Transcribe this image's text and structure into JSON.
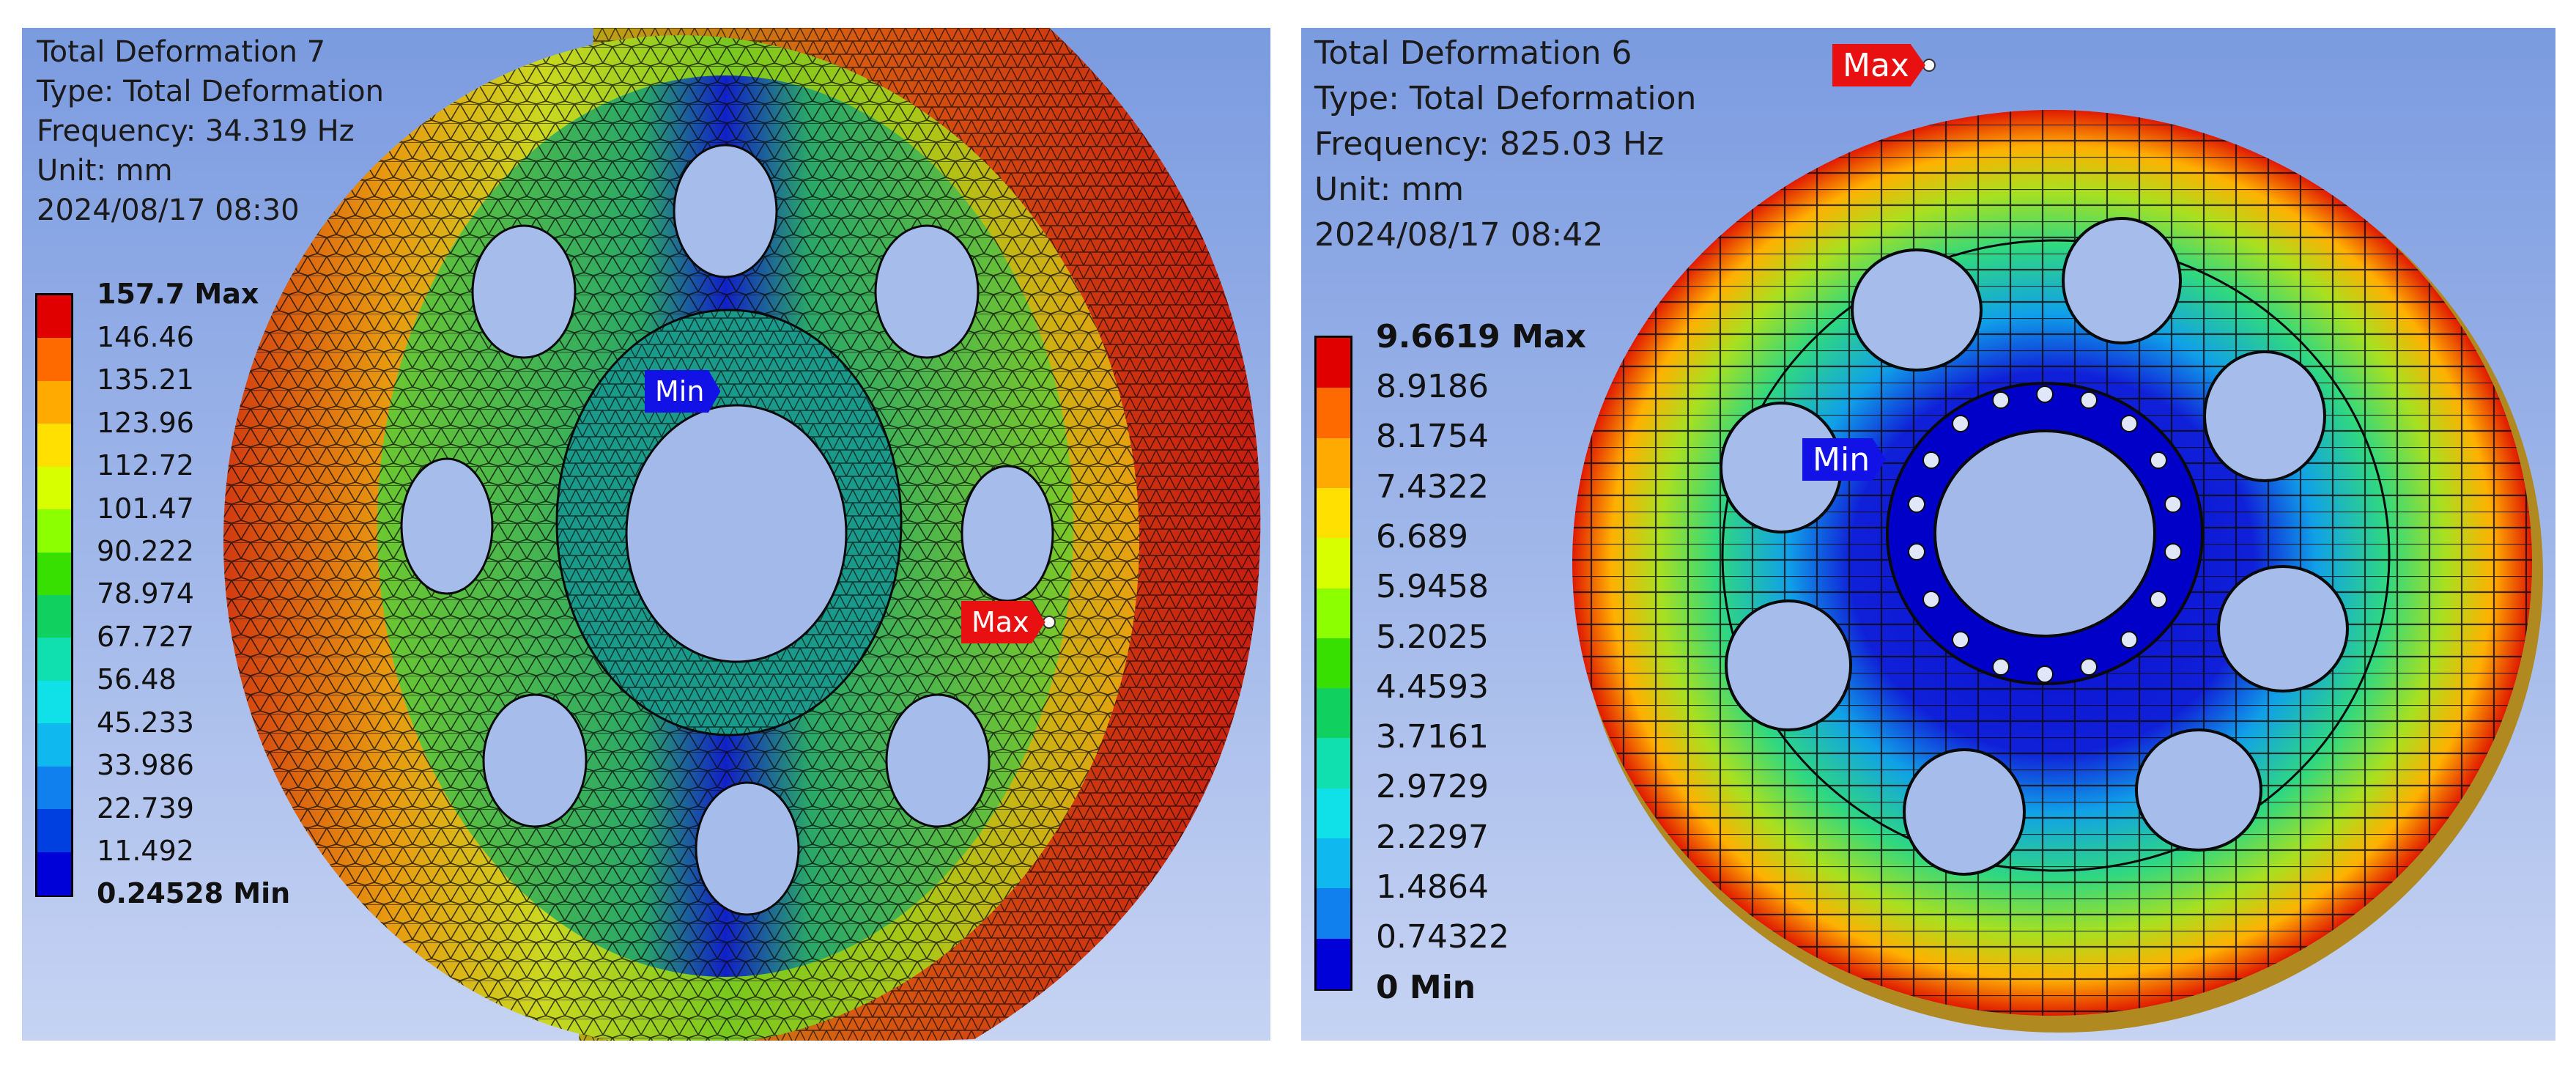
{
  "left": {
    "title": "Total Deformation 7",
    "type": "Type: Total Deformation",
    "frequency": "Frequency: 34.319 Hz",
    "unit": "Unit: mm",
    "timestamp": "2024/08/17 08:30",
    "legend": {
      "max_label": "157.7 Max",
      "min_label": "0.24528 Min",
      "values": [
        "146.46",
        "135.21",
        "123.96",
        "112.72",
        "101.47",
        "90.222",
        "78.974",
        "67.727",
        "56.48",
        "45.233",
        "33.986",
        "22.739",
        "11.492"
      ],
      "colors": [
        "#e00000",
        "#ff6a00",
        "#ffaa00",
        "#ffe000",
        "#d8ff00",
        "#8cff00",
        "#38e000",
        "#10d060",
        "#10e0b0",
        "#10e0e8",
        "#10b8f0",
        "#1080ee",
        "#0040e0",
        "#0000d8"
      ]
    },
    "probe_min": "Min",
    "probe_max": "Max"
  },
  "right": {
    "title": "Total Deformation 6",
    "type": "Type: Total Deformation",
    "frequency": "Frequency: 825.03 Hz",
    "unit": "Unit: mm",
    "timestamp": "2024/08/17 08:42",
    "legend": {
      "max_label": "9.6619 Max",
      "min_label": "0 Min",
      "values": [
        "8.9186",
        "8.1754",
        "7.4322",
        "6.689",
        "5.9458",
        "5.2025",
        "4.4593",
        "3.7161",
        "2.9729",
        "2.2297",
        "1.4864",
        "0.74322"
      ],
      "colors": [
        "#e00000",
        "#ff6a00",
        "#ffaa00",
        "#ffe000",
        "#d8ff00",
        "#8cff00",
        "#38e000",
        "#10d060",
        "#10e0b0",
        "#10e0e8",
        "#10b8f0",
        "#1080ee",
        "#0000d8"
      ]
    },
    "probe_min": "Min",
    "probe_max": "Max"
  }
}
